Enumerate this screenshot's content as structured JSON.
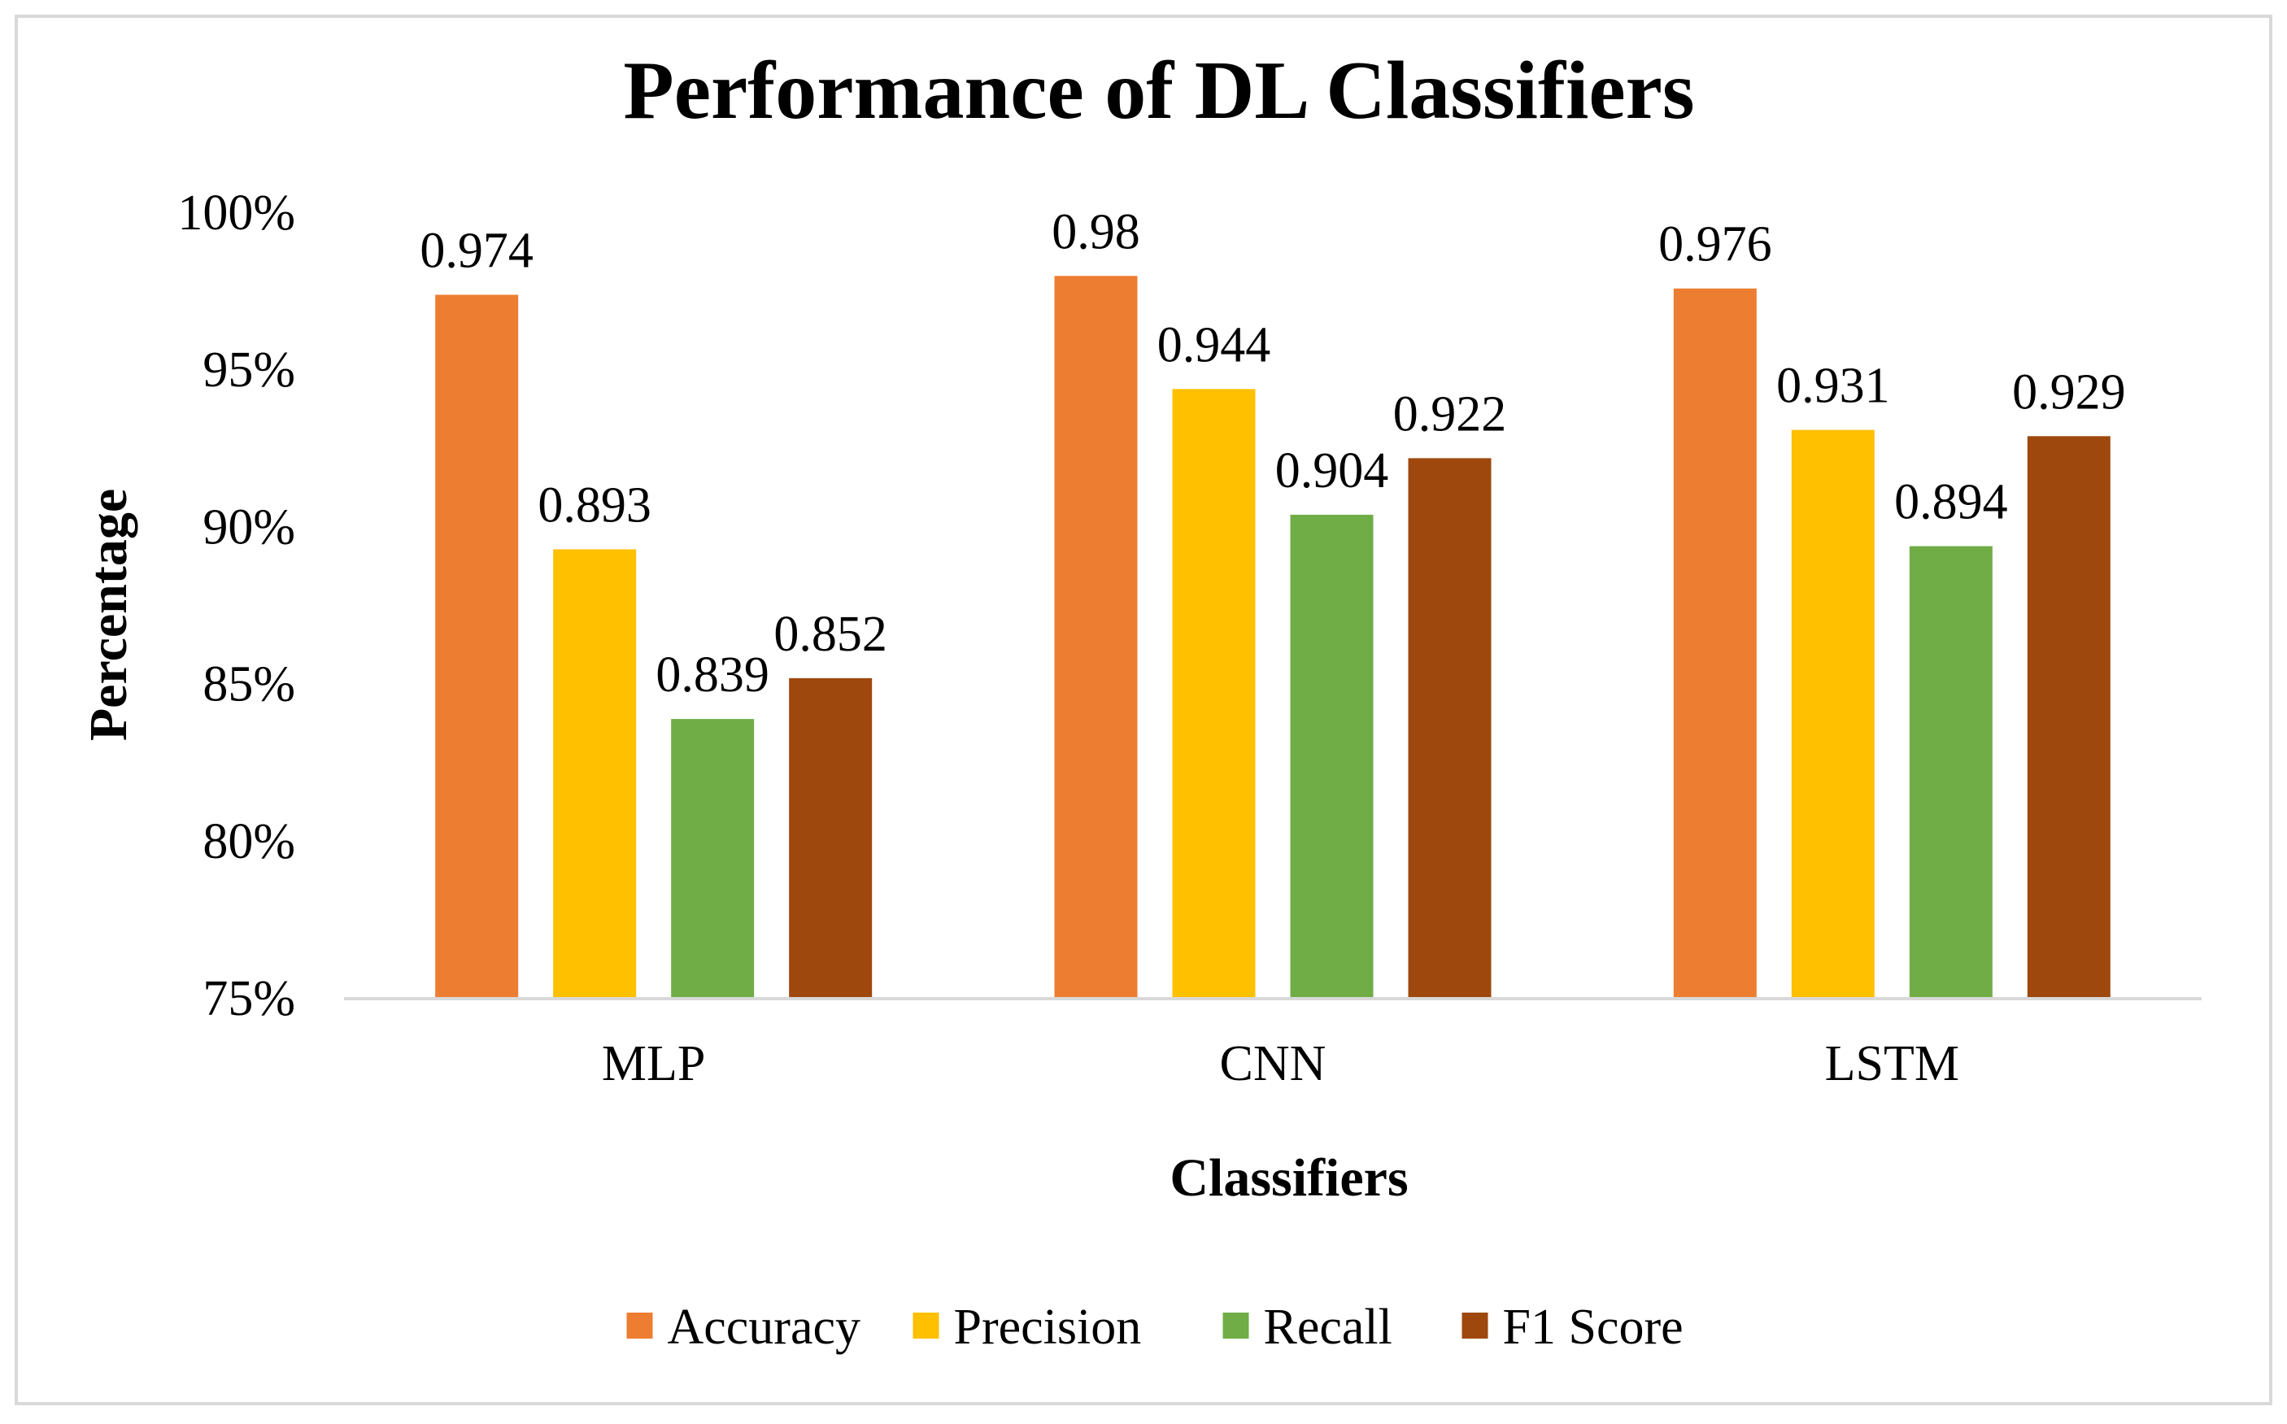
{
  "chart_data": {
    "type": "bar",
    "title": "Performance of DL Classifiers",
    "xlabel": "Classifiers",
    "ylabel": "Percentage",
    "ylim": [
      0.75,
      1.0
    ],
    "yticks": [
      0.75,
      0.8,
      0.85,
      0.9,
      0.95,
      1.0
    ],
    "ytick_labels": [
      "75%",
      "80%",
      "85%",
      "90%",
      "95%",
      "100%"
    ],
    "grid": false,
    "legend_position": "bottom",
    "categories": [
      "MLP",
      "CNN",
      "LSTM"
    ],
    "series": [
      {
        "name": "Accuracy",
        "color": "#ED7D31",
        "values": [
          0.974,
          0.98,
          0.976
        ],
        "labels": [
          "0.974",
          "0.98",
          "0.976"
        ]
      },
      {
        "name": "Precision",
        "color": "#FFC000",
        "values": [
          0.893,
          0.944,
          0.931
        ],
        "labels": [
          "0.893",
          "0.944",
          "0.931"
        ]
      },
      {
        "name": "Recall",
        "color": "#70AD47",
        "values": [
          0.839,
          0.904,
          0.894
        ],
        "labels": [
          "0.839",
          "0.904",
          "0.894"
        ]
      },
      {
        "name": "F1 Score",
        "color": "#9E480E",
        "values": [
          0.852,
          0.922,
          0.929
        ],
        "labels": [
          "0.852",
          "0.922",
          "0.929"
        ]
      }
    ]
  }
}
